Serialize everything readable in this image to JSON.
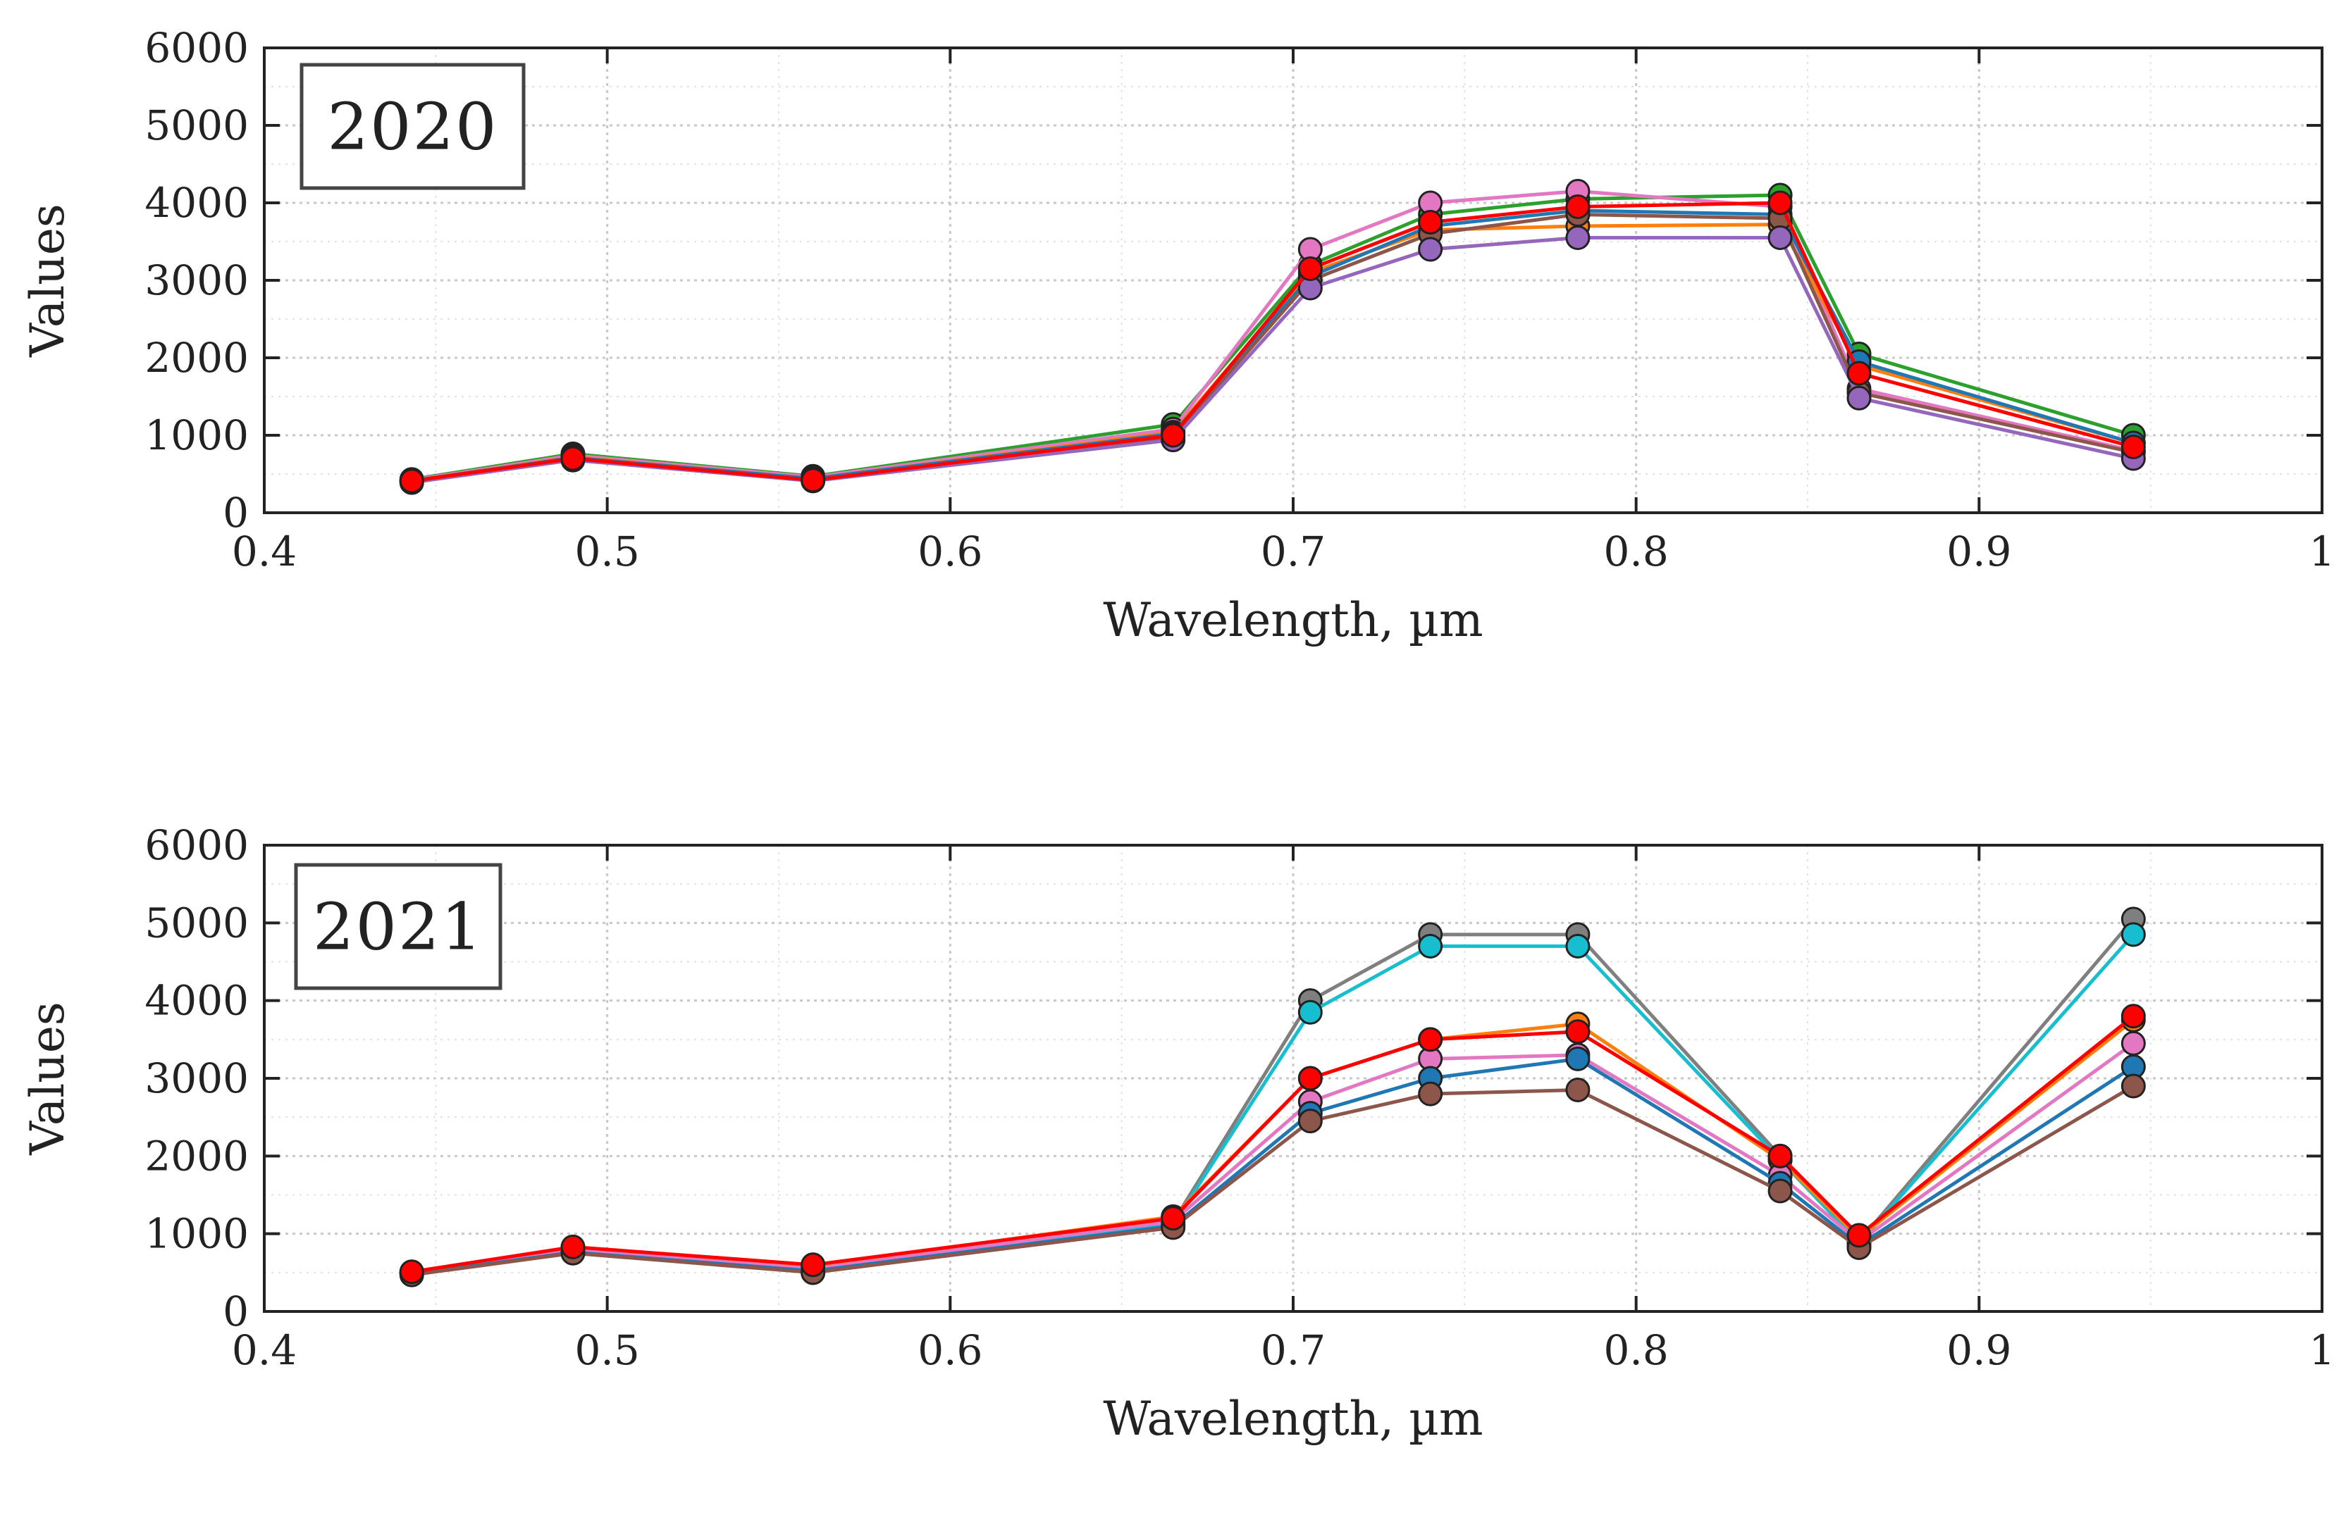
{
  "chart_data": [
    {
      "type": "line",
      "title": "2020",
      "xlabel": "Wavelength, µm",
      "ylabel": "Values",
      "xlim": [
        0.4,
        1.0
      ],
      "ylim": [
        0,
        6000
      ],
      "xticks": [
        0.4,
        0.5,
        0.6,
        0.7,
        0.8,
        0.9,
        1
      ],
      "xtick_labels": [
        "0.4",
        "0.5",
        "0.6",
        "0.7",
        "0.8",
        "0.9",
        "1"
      ],
      "yticks": [
        0,
        1000,
        2000,
        3000,
        4000,
        5000,
        6000
      ],
      "ytick_labels": [
        "0",
        "1000",
        "2000",
        "3000",
        "4000",
        "5000",
        "6000"
      ],
      "grid": true,
      "x": [
        0.443,
        0.49,
        0.56,
        0.665,
        0.705,
        0.74,
        0.783,
        0.842,
        0.865,
        0.945
      ],
      "series": [
        {
          "name": "series-1",
          "color": "#2ca02c",
          "values": [
            430,
            760,
            470,
            1140,
            3200,
            3850,
            4050,
            4100,
            2050,
            1000
          ]
        },
        {
          "name": "series-2",
          "color": "#e377c2",
          "values": [
            420,
            740,
            460,
            1080,
            3400,
            4000,
            4150,
            3950,
            1600,
            800
          ]
        },
        {
          "name": "series-3",
          "color": "#ff7f0e",
          "values": [
            410,
            720,
            440,
            1040,
            3100,
            3650,
            3700,
            3720,
            1900,
            900
          ]
        },
        {
          "name": "series-4",
          "color": "#1f77b4",
          "values": [
            410,
            710,
            440,
            1020,
            3050,
            3700,
            3900,
            3850,
            1950,
            900
          ]
        },
        {
          "name": "series-5",
          "color": "#8c564b",
          "values": [
            400,
            700,
            420,
            980,
            3000,
            3600,
            3850,
            3800,
            1550,
            780
          ]
        },
        {
          "name": "series-6",
          "color": "#9467bd",
          "values": [
            390,
            680,
            410,
            940,
            2900,
            3400,
            3550,
            3550,
            1480,
            700
          ]
        },
        {
          "name": "series-7",
          "color": "#ff0000",
          "values": [
            410,
            700,
            420,
            1000,
            3150,
            3750,
            3950,
            4000,
            1800,
            850
          ]
        }
      ]
    },
    {
      "type": "line",
      "title": "2021",
      "xlabel": "Wavelength, µm",
      "ylabel": "Values",
      "xlim": [
        0.4,
        1.0
      ],
      "ylim": [
        0,
        6000
      ],
      "xticks": [
        0.4,
        0.5,
        0.6,
        0.7,
        0.8,
        0.9,
        1
      ],
      "xtick_labels": [
        "0.4",
        "0.5",
        "0.6",
        "0.7",
        "0.8",
        "0.9",
        "1"
      ],
      "yticks": [
        0,
        1000,
        2000,
        3000,
        4000,
        5000,
        6000
      ],
      "ytick_labels": [
        "0",
        "1000",
        "2000",
        "3000",
        "4000",
        "5000",
        "6000"
      ],
      "grid": true,
      "x": [
        0.443,
        0.49,
        0.56,
        0.665,
        0.705,
        0.74,
        0.783,
        0.842,
        0.865,
        0.945
      ],
      "series": [
        {
          "name": "series-1",
          "color": "#7f7f7f",
          "values": [
            500,
            800,
            520,
            1150,
            4000,
            4850,
            4850,
            2000,
            900,
            5050
          ]
        },
        {
          "name": "series-2",
          "color": "#17becf",
          "values": [
            490,
            780,
            500,
            1120,
            3850,
            4700,
            4700,
            1950,
            880,
            4850
          ]
        },
        {
          "name": "series-3",
          "color": "#ff7f0e",
          "values": [
            510,
            820,
            580,
            1220,
            3000,
            3500,
            3700,
            1950,
            950,
            3750
          ]
        },
        {
          "name": "series-4",
          "color": "#e377c2",
          "values": [
            500,
            790,
            550,
            1160,
            2700,
            3250,
            3300,
            1750,
            900,
            3450
          ]
        },
        {
          "name": "series-5",
          "color": "#1f77b4",
          "values": [
            480,
            760,
            520,
            1100,
            2550,
            3000,
            3250,
            1650,
            850,
            3150
          ]
        },
        {
          "name": "series-6",
          "color": "#8c564b",
          "values": [
            470,
            750,
            500,
            1080,
            2450,
            2800,
            2850,
            1550,
            820,
            2900
          ]
        },
        {
          "name": "series-7",
          "color": "#ff0000",
          "values": [
            510,
            830,
            600,
            1200,
            3000,
            3500,
            3600,
            2000,
            980,
            3800
          ]
        }
      ]
    }
  ]
}
